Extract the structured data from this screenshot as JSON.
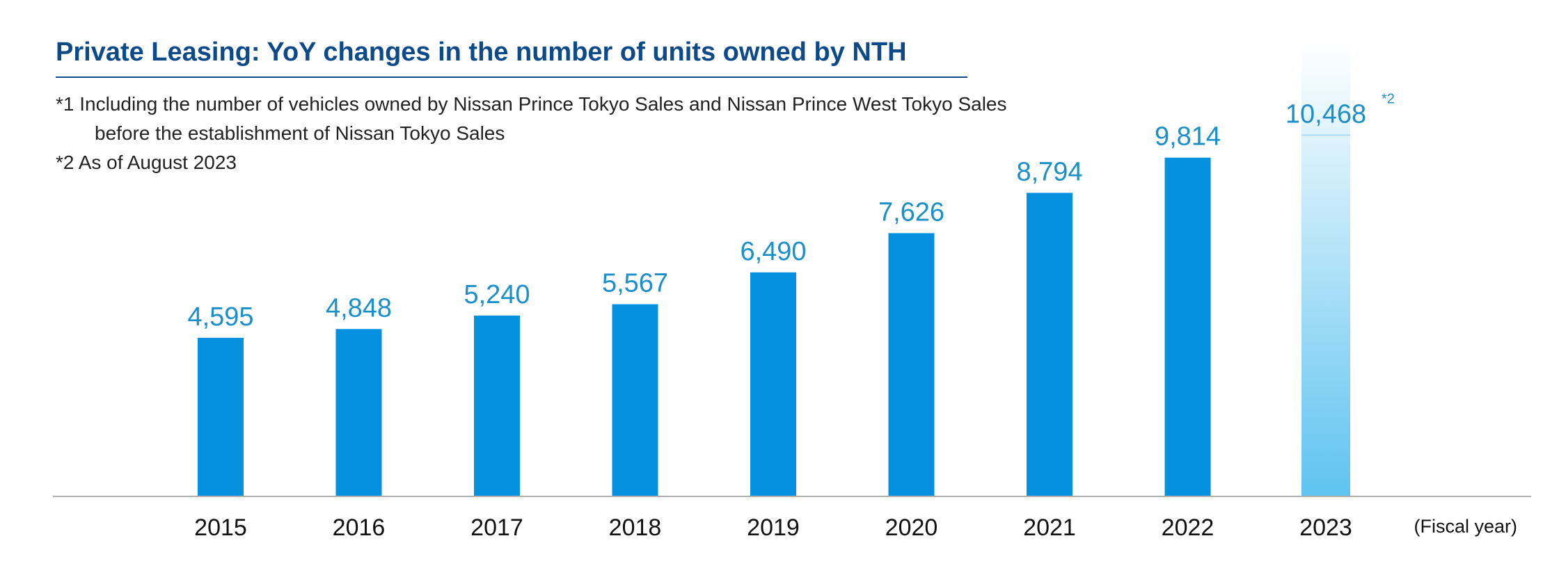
{
  "chart_data": {
    "type": "bar",
    "title": "Private Leasing: YoY changes in the number of units owned by NTH",
    "notes": [
      "*1 Including the number of vehicles owned by Nissan Prince Tokyo Sales and Nissan Prince West Tokyo Sales",
      "before the establishment of Nissan Tokyo Sales",
      "*2 As of August 2023"
    ],
    "categories": [
      "2015",
      "2016",
      "2017",
      "2018",
      "2019",
      "2020",
      "2021",
      "2022",
      "2023"
    ],
    "values": [
      4595,
      4848,
      5240,
      5567,
      6490,
      7626,
      8794,
      9814,
      10468
    ],
    "value_labels": [
      "4,595",
      "4,848",
      "5,240",
      "5,567",
      "6,490",
      "7,626",
      "8,794",
      "9,814",
      "10,468"
    ],
    "annotations": [
      {
        "category": "2023",
        "text": "*2"
      }
    ],
    "xlabel": "(Fiscal year)",
    "ylabel": "",
    "ylim": [
      0,
      10468
    ],
    "grid": false,
    "colors": {
      "bar": "#0690e0",
      "highlight_top": "#ffffff",
      "highlight_bottom": "#5fc3f0",
      "value_text": "#1a8fc9",
      "title": "#0d4a8a",
      "axis": "#b0b0b0"
    }
  }
}
